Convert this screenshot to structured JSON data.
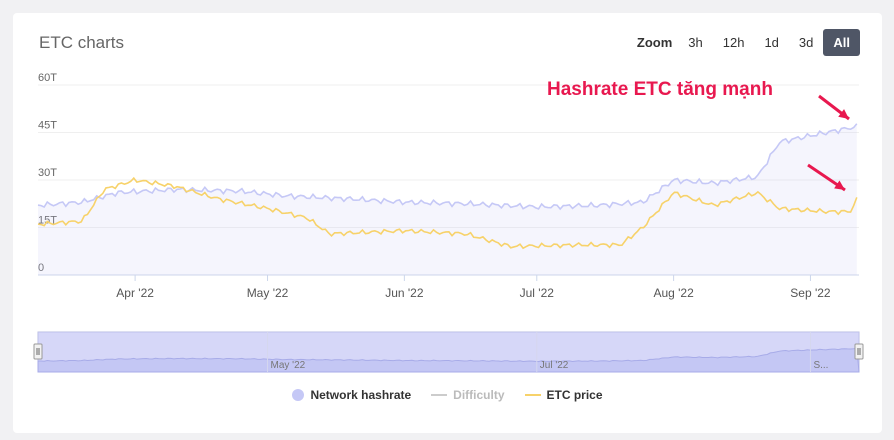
{
  "header": {
    "title": "ETC charts",
    "zoom_label": "Zoom",
    "zoom_options": [
      "3h",
      "12h",
      "1d",
      "3d",
      "All"
    ],
    "zoom_active": "All"
  },
  "annotation": {
    "text": "Hashrate ETC tăng mạnh",
    "color": "#e8184f"
  },
  "legend": {
    "items": [
      {
        "label": "Network hashrate",
        "color": "#c5c8f6",
        "symbol": "dot",
        "enabled": true
      },
      {
        "label": "Difficulty",
        "color": "#cccccc",
        "symbol": "line",
        "enabled": false
      },
      {
        "label": "ETC price",
        "color": "#f7d26a",
        "symbol": "line",
        "enabled": true
      }
    ]
  },
  "navigator": {
    "labels": [
      "May '22",
      "Jul '22",
      "S..."
    ]
  },
  "chart_data": {
    "type": "line",
    "title": "ETC charts",
    "xlabel": "",
    "ylabel": "",
    "x_ticks": [
      "Apr '22",
      "May '22",
      "Jun '22",
      "Jul '22",
      "Aug '22",
      "Sep '22"
    ],
    "y_ticks": [
      "0",
      "15T",
      "30T",
      "45T",
      "60T"
    ],
    "ylim": [
      0,
      60
    ],
    "x_range": [
      "2022-03-10",
      "2022-09-12"
    ],
    "grid": true,
    "legend_position": "bottom",
    "series": [
      {
        "name": "Network hashrate",
        "color": "#c5c8f6",
        "x": [
          "2022-03-10",
          "2022-03-20",
          "2022-03-28",
          "2022-04-10",
          "2022-04-25",
          "2022-05-05",
          "2022-05-20",
          "2022-06-01",
          "2022-06-15",
          "2022-07-01",
          "2022-07-15",
          "2022-07-25",
          "2022-08-01",
          "2022-08-10",
          "2022-08-20",
          "2022-08-25",
          "2022-09-01",
          "2022-09-12"
        ],
        "values": [
          22,
          23,
          26,
          27,
          26.5,
          25,
          24,
          23,
          22.5,
          21.5,
          22,
          23,
          30,
          29,
          31,
          42,
          44,
          47
        ]
      },
      {
        "name": "Difficulty",
        "color": "#cccccc",
        "visible": false,
        "x": [],
        "values": []
      },
      {
        "name": "ETC price",
        "color": "#f7d26a",
        "x": [
          "2022-03-10",
          "2022-03-20",
          "2022-03-25",
          "2022-04-01",
          "2022-04-10",
          "2022-04-20",
          "2022-05-01",
          "2022-05-10",
          "2022-05-15",
          "2022-06-01",
          "2022-06-15",
          "2022-06-25",
          "2022-07-10",
          "2022-07-20",
          "2022-07-25",
          "2022-08-01",
          "2022-08-10",
          "2022-08-20",
          "2022-08-25",
          "2022-09-05",
          "2022-09-10",
          "2022-09-12"
        ],
        "values": [
          16,
          17,
          27,
          30,
          28,
          24,
          21,
          18,
          13,
          14,
          13,
          9,
          9.5,
          9.5,
          15,
          26,
          22,
          26,
          21,
          20,
          20,
          25
        ]
      }
    ]
  }
}
